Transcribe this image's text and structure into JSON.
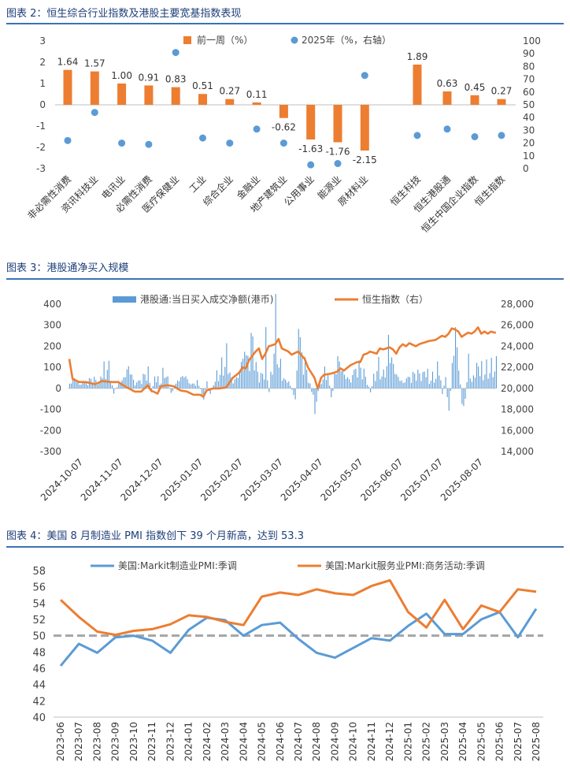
{
  "chart1_title": "图表 2：恒生综合行业指数及港股主要宽基指数表现",
  "chart2_title": "图表 3：港股通净买入规模",
  "chart3_title": "图表 4：美国 8 月制造业 PMI 指数创下 39 个月新高，达到 53.3",
  "colors": {
    "orange": "#ed7d31",
    "blue": "#5b9bd5",
    "title_blue": "#1f3f7a",
    "rule": "#3a73b8",
    "dash": "#a5a5a5"
  },
  "chart_data": [
    {
      "type": "bar",
      "categories": [
        "非必需性消费",
        "资讯科技业",
        "电讯业",
        "必需性消费",
        "医疗保健业",
        "工业",
        "综合企业",
        "金融业",
        "地产建筑业",
        "公用事业",
        "能源业",
        "原材料业",
        "恒生科技",
        "恒生港股通",
        "恒生中国企业指数",
        "恒生指数"
      ],
      "series": [
        {
          "name": "前一周（%）",
          "type": "bar",
          "axis": "left",
          "values": [
            1.64,
            1.57,
            1.0,
            0.91,
            0.83,
            0.51,
            0.27,
            0.11,
            -0.62,
            -1.63,
            -1.76,
            -2.15,
            1.89,
            0.63,
            0.45,
            0.27
          ],
          "labels": [
            "1.64",
            "1.57",
            "1.00",
            "0.91",
            "0.83",
            "0.51",
            "0.27",
            "0.11",
            "-0.62",
            "-1.63",
            "-1.76",
            "-2.15",
            "1.89",
            "0.63",
            "0.45",
            "0.27"
          ]
        },
        {
          "name": "2025年（%，右轴）",
          "type": "scatter",
          "axis": "right",
          "values": [
            22,
            44,
            20,
            19,
            91,
            24,
            20,
            31,
            20,
            3,
            4,
            73,
            26,
            31,
            25,
            26
          ]
        }
      ],
      "ylim": [
        -3,
        3
      ],
      "yticks": [
        "3",
        "2",
        "1",
        "0",
        "-1",
        "-2",
        "-3"
      ],
      "y2lim": [
        0,
        100
      ],
      "y2ticks": [
        "100",
        "90",
        "80",
        "70",
        "60",
        "50",
        "40",
        "30",
        "20",
        "10",
        "0"
      ]
    },
    {
      "type": "bar",
      "x": [
        "2024-10-07",
        "2024-11-07",
        "2024-12-07",
        "2025-01-07",
        "2025-02-07",
        "2025-03-07",
        "2025-04-07",
        "2025-05-07",
        "2025-06-07",
        "2025-07-07",
        "2025-08-07"
      ],
      "series": [
        {
          "name": "港股通:当日买入成交净额(港币)",
          "type": "bar",
          "axis": "left",
          "anchors": [
            [
              0,
              30
            ],
            [
              3,
              60
            ],
            [
              6,
              20
            ],
            [
              10,
              40
            ],
            [
              14,
              60
            ],
            [
              18,
              30
            ],
            [
              20,
              90
            ],
            [
              23,
              150
            ],
            [
              27,
              -20
            ],
            [
              32,
              50
            ],
            [
              36,
              130
            ],
            [
              40,
              20
            ],
            [
              44,
              60
            ],
            [
              48,
              100
            ],
            [
              50,
              -40
            ],
            [
              52,
              60
            ],
            [
              56,
              40
            ],
            [
              58,
              120
            ],
            [
              62,
              -30
            ],
            [
              66,
              50
            ],
            [
              70,
              80
            ],
            [
              74,
              20
            ],
            [
              78,
              40
            ],
            [
              82,
              -60
            ],
            [
              84,
              30
            ],
            [
              86,
              -50
            ],
            [
              88,
              40
            ],
            [
              92,
              100
            ],
            [
              96,
              160
            ],
            [
              100,
              40
            ],
            [
              104,
              90
            ],
            [
              106,
              200
            ],
            [
              108,
              170
            ],
            [
              112,
              300
            ],
            [
              114,
              120
            ],
            [
              116,
              60
            ],
            [
              119,
              80
            ],
            [
              120,
              250
            ],
            [
              122,
              -30
            ],
            [
              126,
              350
            ],
            [
              128,
              140
            ],
            [
              130,
              70
            ],
            [
              134,
              40
            ],
            [
              138,
              -60
            ],
            [
              140,
              300
            ],
            [
              144,
              150
            ],
            [
              148,
              -20
            ],
            [
              150,
              -110
            ],
            [
              154,
              60
            ],
            [
              158,
              110
            ],
            [
              160,
              -90
            ],
            [
              164,
              200
            ],
            [
              168,
              80
            ],
            [
              172,
              40
            ],
            [
              176,
              150
            ],
            [
              180,
              90
            ],
            [
              184,
              -20
            ],
            [
              188,
              140
            ],
            [
              192,
              70
            ],
            [
              196,
              230
            ],
            [
              200,
              80
            ],
            [
              204,
              30
            ],
            [
              208,
              70
            ],
            [
              212,
              90
            ],
            [
              216,
              70
            ],
            [
              218,
              100
            ],
            [
              220,
              60
            ],
            [
              224,
              70
            ],
            [
              226,
              130
            ],
            [
              228,
              -20
            ],
            [
              230,
              70
            ],
            [
              232,
              -180
            ],
            [
              234,
              150
            ],
            [
              236,
              330
            ],
            [
              238,
              120
            ],
            [
              240,
              -80
            ],
            [
              242,
              -140
            ],
            [
              244,
              200
            ],
            [
              246,
              30
            ],
            [
              248,
              110
            ]
          ]
        },
        {
          "name": "恒生指数（右）",
          "type": "line",
          "axis": "right",
          "anchors": [
            [
              0,
              22800
            ],
            [
              2,
              20900
            ],
            [
              6,
              20600
            ],
            [
              10,
              20600
            ],
            [
              16,
              20400
            ],
            [
              20,
              20700
            ],
            [
              26,
              20600
            ],
            [
              30,
              20600
            ],
            [
              34,
              20200
            ],
            [
              40,
              19700
            ],
            [
              44,
              19700
            ],
            [
              48,
              20300
            ],
            [
              50,
              19800
            ],
            [
              54,
              19500
            ],
            [
              56,
              20200
            ],
            [
              60,
              20300
            ],
            [
              64,
              20200
            ],
            [
              68,
              19800
            ],
            [
              72,
              19700
            ],
            [
              76,
              19400
            ],
            [
              80,
              19400
            ],
            [
              82,
              19200
            ],
            [
              84,
              19800
            ],
            [
              88,
              20000
            ],
            [
              92,
              20000
            ],
            [
              96,
              20100
            ],
            [
              100,
              21000
            ],
            [
              104,
              21500
            ],
            [
              106,
              22000
            ],
            [
              108,
              21900
            ],
            [
              110,
              22700
            ],
            [
              114,
              23500
            ],
            [
              116,
              23800
            ],
            [
              118,
              22800
            ],
            [
              120,
              23300
            ],
            [
              122,
              24000
            ],
            [
              126,
              24200
            ],
            [
              128,
              24700
            ],
            [
              130,
              23800
            ],
            [
              134,
              23500
            ],
            [
              136,
              23200
            ],
            [
              140,
              23500
            ],
            [
              144,
              22800
            ],
            [
              146,
              22000
            ],
            [
              150,
              21000
            ],
            [
              152,
              20000
            ],
            [
              154,
              21000
            ],
            [
              156,
              21300
            ],
            [
              160,
              21400
            ],
            [
              164,
              21600
            ],
            [
              166,
              21900
            ],
            [
              168,
              21700
            ],
            [
              172,
              22200
            ],
            [
              176,
              22500
            ],
            [
              178,
              22500
            ],
            [
              180,
              23200
            ],
            [
              182,
              23300
            ],
            [
              184,
              23500
            ],
            [
              188,
              23300
            ],
            [
              190,
              23800
            ],
            [
              192,
              23700
            ],
            [
              196,
              23900
            ],
            [
              198,
              23700
            ],
            [
              200,
              23300
            ],
            [
              202,
              23900
            ],
            [
              204,
              24200
            ],
            [
              206,
              24000
            ],
            [
              208,
              24300
            ],
            [
              212,
              24000
            ],
            [
              214,
              24200
            ],
            [
              216,
              24300
            ],
            [
              220,
              24500
            ],
            [
              224,
              24600
            ],
            [
              228,
              25000
            ],
            [
              230,
              24900
            ],
            [
              232,
              25200
            ],
            [
              234,
              25700
            ],
            [
              236,
              25600
            ],
            [
              238,
              25400
            ],
            [
              240,
              24900
            ],
            [
              242,
              25100
            ],
            [
              244,
              25300
            ],
            [
              246,
              25200
            ],
            [
              248,
              25400
            ],
            [
              250,
              25800
            ],
            [
              252,
              25200
            ],
            [
              254,
              25400
            ],
            [
              256,
              25200
            ],
            [
              258,
              25400
            ],
            [
              260,
              25300
            ]
          ]
        }
      ],
      "ylim": [
        -300,
        400
      ],
      "yticks": [
        "400",
        "300",
        "200",
        "100",
        "0",
        "-100",
        "-200",
        "-300"
      ],
      "y2lim": [
        14000,
        28000
      ],
      "y2ticks": [
        "28,000",
        "26,000",
        "24,000",
        "22,000",
        "20,000",
        "18,000",
        "16,000",
        "14,000"
      ]
    },
    {
      "type": "line",
      "x": [
        "2023-06",
        "2023-07",
        "2023-08",
        "2023-09",
        "2023-10",
        "2023-11",
        "2023-12",
        "2024-01",
        "2024-02",
        "2024-03",
        "2024-04",
        "2024-05",
        "2024-06",
        "2024-07",
        "2024-08",
        "2024-09",
        "2024-10",
        "2024-11",
        "2024-12",
        "2025-01",
        "2025-02",
        "2025-03",
        "2025-04",
        "2025-05",
        "2025-06",
        "2025-07",
        "2025-08"
      ],
      "series": [
        {
          "name": "美国:Markit制造业PMI:季调",
          "values": [
            46.3,
            49.0,
            47.9,
            49.8,
            50.0,
            49.4,
            47.9,
            50.7,
            52.2,
            51.9,
            50.0,
            51.3,
            51.6,
            49.6,
            47.9,
            47.3,
            48.5,
            49.7,
            49.4,
            51.2,
            52.7,
            50.2,
            50.2,
            52.0,
            52.9,
            49.8,
            53.3
          ]
        },
        {
          "name": "美国:Markit服务业PMI:商务活动:季调",
          "values": [
            54.4,
            52.3,
            50.5,
            50.1,
            50.6,
            50.8,
            51.4,
            52.5,
            52.3,
            51.7,
            51.3,
            54.8,
            55.3,
            55.0,
            55.7,
            55.2,
            55.0,
            56.1,
            56.8,
            52.9,
            51.0,
            54.4,
            50.8,
            53.7,
            52.9,
            55.7,
            55.4
          ]
        }
      ],
      "reference_line": 50,
      "ylim": [
        40,
        58
      ],
      "yticks": [
        "58",
        "56",
        "54",
        "52",
        "50",
        "48",
        "46",
        "44",
        "42",
        "40"
      ]
    }
  ]
}
